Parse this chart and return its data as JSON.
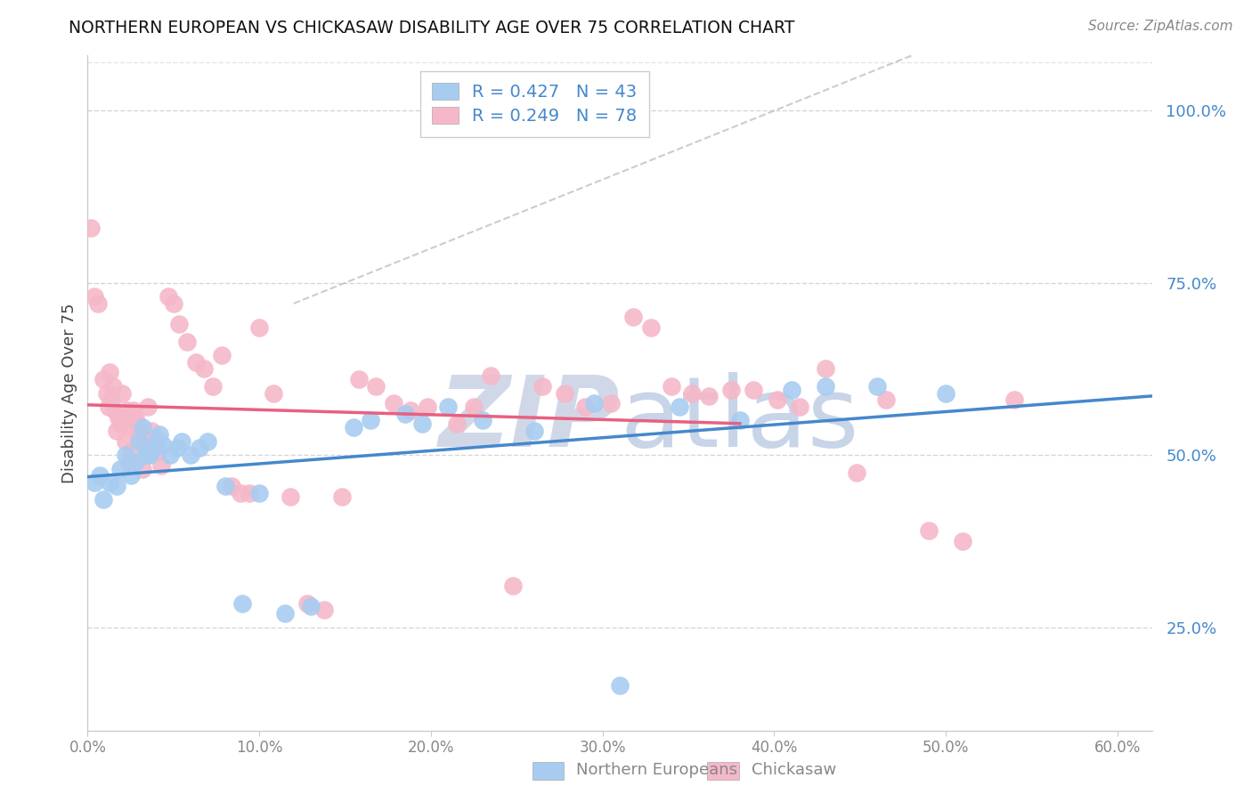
{
  "title": "NORTHERN EUROPEAN VS CHICKASAW DISABILITY AGE OVER 75 CORRELATION CHART",
  "source": "Source: ZipAtlas.com",
  "ylabel": "Disability Age Over 75",
  "xlim": [
    0.0,
    0.62
  ],
  "ylim": [
    0.1,
    1.08
  ],
  "xticks": [
    0.0,
    0.1,
    0.2,
    0.3,
    0.4,
    0.5,
    0.6
  ],
  "xticklabels": [
    "0.0%",
    "10.0%",
    "20.0%",
    "30.0%",
    "40.0%",
    "50.0%",
    "60.0%"
  ],
  "yticks": [
    0.25,
    0.5,
    0.75,
    1.0
  ],
  "yticklabels": [
    "25.0%",
    "50.0%",
    "75.0%",
    "100.0%"
  ],
  "blue_R": 0.427,
  "blue_N": 43,
  "pink_R": 0.249,
  "pink_N": 78,
  "blue_label": "Northern Europeans",
  "pink_label": "Chickasaw",
  "blue_color": "#A8CCF0",
  "pink_color": "#F5B8C8",
  "blue_line_color": "#4488CC",
  "pink_line_color": "#E86080",
  "legend_text_color": "#4488CC",
  "ytick_color": "#4488CC",
  "xtick_color": "#888888",
  "blue_scatter": [
    [
      0.004,
      0.46
    ],
    [
      0.007,
      0.47
    ],
    [
      0.009,
      0.435
    ],
    [
      0.013,
      0.46
    ],
    [
      0.017,
      0.455
    ],
    [
      0.019,
      0.48
    ],
    [
      0.022,
      0.5
    ],
    [
      0.025,
      0.47
    ],
    [
      0.028,
      0.49
    ],
    [
      0.03,
      0.52
    ],
    [
      0.032,
      0.54
    ],
    [
      0.034,
      0.5
    ],
    [
      0.036,
      0.5
    ],
    [
      0.038,
      0.51
    ],
    [
      0.04,
      0.52
    ],
    [
      0.042,
      0.53
    ],
    [
      0.044,
      0.515
    ],
    [
      0.048,
      0.5
    ],
    [
      0.052,
      0.51
    ],
    [
      0.055,
      0.52
    ],
    [
      0.06,
      0.5
    ],
    [
      0.065,
      0.51
    ],
    [
      0.07,
      0.52
    ],
    [
      0.08,
      0.455
    ],
    [
      0.09,
      0.285
    ],
    [
      0.1,
      0.445
    ],
    [
      0.115,
      0.27
    ],
    [
      0.13,
      0.28
    ],
    [
      0.155,
      0.54
    ],
    [
      0.165,
      0.55
    ],
    [
      0.185,
      0.56
    ],
    [
      0.195,
      0.545
    ],
    [
      0.21,
      0.57
    ],
    [
      0.23,
      0.55
    ],
    [
      0.26,
      0.535
    ],
    [
      0.295,
      0.575
    ],
    [
      0.31,
      0.165
    ],
    [
      0.345,
      0.57
    ],
    [
      0.38,
      0.55
    ],
    [
      0.41,
      0.595
    ],
    [
      0.43,
      0.6
    ],
    [
      0.46,
      0.6
    ],
    [
      0.5,
      0.59
    ]
  ],
  "pink_scatter": [
    [
      0.002,
      0.83
    ],
    [
      0.004,
      0.73
    ],
    [
      0.006,
      0.72
    ],
    [
      0.009,
      0.61
    ],
    [
      0.011,
      0.59
    ],
    [
      0.012,
      0.57
    ],
    [
      0.013,
      0.62
    ],
    [
      0.014,
      0.58
    ],
    [
      0.015,
      0.6
    ],
    [
      0.016,
      0.565
    ],
    [
      0.017,
      0.535
    ],
    [
      0.018,
      0.555
    ],
    [
      0.019,
      0.545
    ],
    [
      0.02,
      0.59
    ],
    [
      0.021,
      0.555
    ],
    [
      0.022,
      0.52
    ],
    [
      0.023,
      0.565
    ],
    [
      0.024,
      0.49
    ],
    [
      0.025,
      0.505
    ],
    [
      0.026,
      0.54
    ],
    [
      0.027,
      0.565
    ],
    [
      0.028,
      0.555
    ],
    [
      0.029,
      0.545
    ],
    [
      0.03,
      0.535
    ],
    [
      0.031,
      0.525
    ],
    [
      0.032,
      0.48
    ],
    [
      0.033,
      0.525
    ],
    [
      0.034,
      0.515
    ],
    [
      0.035,
      0.57
    ],
    [
      0.037,
      0.535
    ],
    [
      0.039,
      0.525
    ],
    [
      0.041,
      0.505
    ],
    [
      0.043,
      0.485
    ],
    [
      0.047,
      0.73
    ],
    [
      0.05,
      0.72
    ],
    [
      0.053,
      0.69
    ],
    [
      0.058,
      0.665
    ],
    [
      0.063,
      0.635
    ],
    [
      0.068,
      0.625
    ],
    [
      0.073,
      0.6
    ],
    [
      0.078,
      0.645
    ],
    [
      0.084,
      0.455
    ],
    [
      0.089,
      0.445
    ],
    [
      0.094,
      0.445
    ],
    [
      0.1,
      0.685
    ],
    [
      0.108,
      0.59
    ],
    [
      0.118,
      0.44
    ],
    [
      0.128,
      0.285
    ],
    [
      0.138,
      0.275
    ],
    [
      0.148,
      0.44
    ],
    [
      0.158,
      0.61
    ],
    [
      0.168,
      0.6
    ],
    [
      0.178,
      0.575
    ],
    [
      0.188,
      0.565
    ],
    [
      0.198,
      0.57
    ],
    [
      0.215,
      0.545
    ],
    [
      0.225,
      0.57
    ],
    [
      0.235,
      0.615
    ],
    [
      0.248,
      0.31
    ],
    [
      0.265,
      0.6
    ],
    [
      0.278,
      0.59
    ],
    [
      0.29,
      0.57
    ],
    [
      0.305,
      0.575
    ],
    [
      0.318,
      0.7
    ],
    [
      0.328,
      0.685
    ],
    [
      0.34,
      0.6
    ],
    [
      0.352,
      0.59
    ],
    [
      0.362,
      0.585
    ],
    [
      0.375,
      0.595
    ],
    [
      0.388,
      0.595
    ],
    [
      0.402,
      0.58
    ],
    [
      0.415,
      0.57
    ],
    [
      0.43,
      0.625
    ],
    [
      0.448,
      0.475
    ],
    [
      0.465,
      0.58
    ],
    [
      0.49,
      0.39
    ],
    [
      0.51,
      0.375
    ],
    [
      0.54,
      0.58
    ]
  ],
  "watermark_zip": "ZIP",
  "watermark_atlas": "atlas",
  "watermark_color_zip": "#D0D8E8",
  "watermark_color_atlas": "#C8D4E8",
  "bg_color": "#FFFFFF",
  "grid_color": "#CCCCCC",
  "spine_color": "#CCCCCC"
}
